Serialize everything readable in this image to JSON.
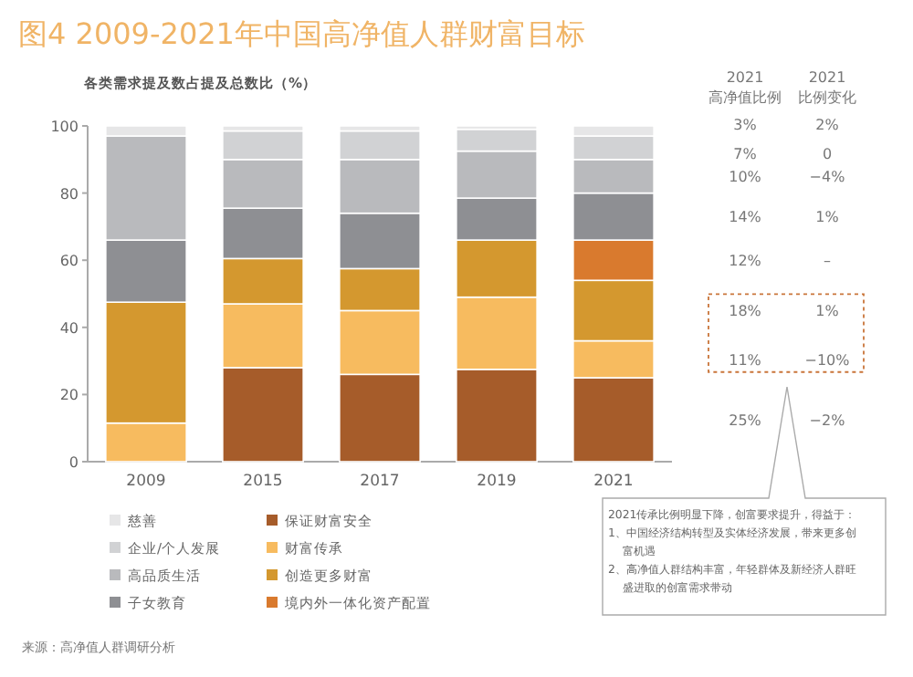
{
  "chart_data": {
    "type": "bar",
    "stacked": true,
    "title": "图4 2009-2021年中国高净值人群财富目标",
    "subtitle": "各类需求提及数占提及总数比（%）",
    "categories": [
      "2009",
      "2015",
      "2017",
      "2019",
      "2021"
    ],
    "ylim": [
      0,
      100
    ],
    "yticks": [
      0,
      20,
      40,
      60,
      80,
      100
    ],
    "grid": false,
    "legend": "bottom",
    "series": [
      {
        "name": "保证财富安全",
        "color": "#a65c2a",
        "values": [
          0,
          28,
          26,
          27.5,
          25
        ]
      },
      {
        "name": "财富传承",
        "color": "#f7bb5f",
        "values": [
          11.5,
          19,
          19,
          21.5,
          11
        ]
      },
      {
        "name": "创造更多财富",
        "color": "#d4982f",
        "values": [
          36,
          13.5,
          12.5,
          17,
          18
        ]
      },
      {
        "name": "境内外一体化资产配置",
        "color": "#d97a2e",
        "values": [
          0,
          0,
          0,
          0,
          12
        ]
      },
      {
        "name": "子女教育",
        "color": "#8e8f93",
        "values": [
          18.5,
          15,
          16.5,
          12.5,
          14
        ]
      },
      {
        "name": "高品质生活",
        "color": "#b9babd",
        "values": [
          31,
          14.5,
          16,
          14,
          10
        ]
      },
      {
        "name": "企业/个人发展",
        "color": "#d1d2d4",
        "values": [
          0,
          8.5,
          8.5,
          6.5,
          7
        ]
      },
      {
        "name": "慈善",
        "color": "#e6e6e7",
        "values": [
          3,
          1.5,
          1.5,
          1,
          3
        ]
      }
    ],
    "annotations": [
      "2021\n高净值比例",
      "2021\n比例变化",
      "3%",
      "7%",
      "10%",
      "14%",
      "12%",
      "18%",
      "11%",
      "25%",
      "2%",
      "0",
      "−4%",
      "1%",
      "–",
      "1%",
      "−10%",
      "−2%",
      "2021传承比例明显下降，创富要求提升，得益于：\n1、中国经济结构转型及实体经济发展，带来更多创富机遇\n2、高净值人群结构丰富，年轻群体及新经济人群旺盛进取的创富需求带动",
      "来源：高净值人群调研分析"
    ]
  }
}
